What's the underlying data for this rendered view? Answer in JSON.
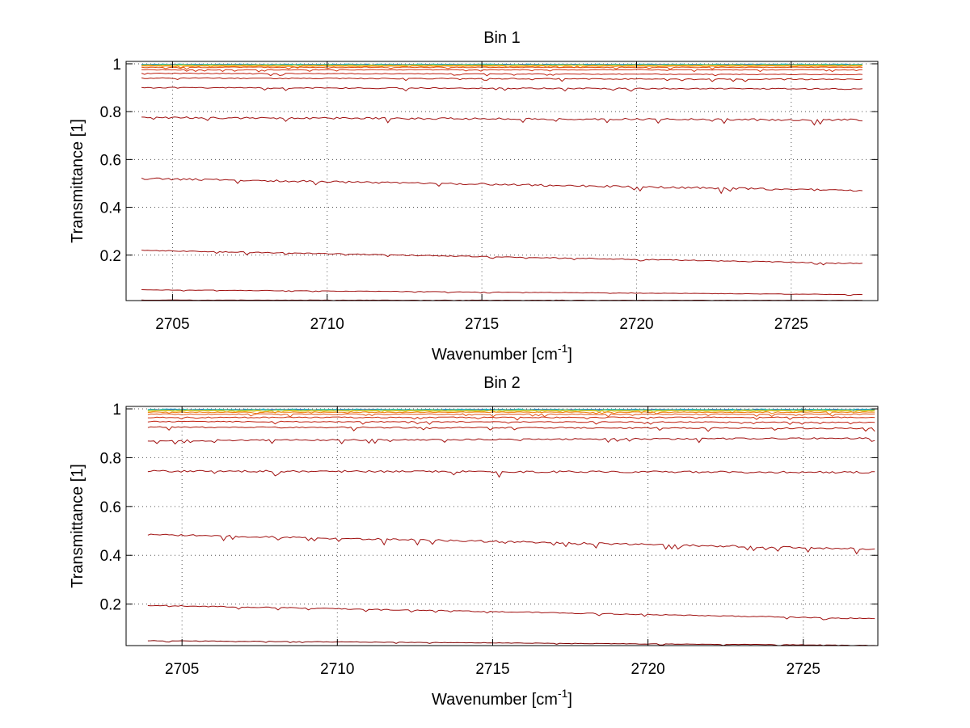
{
  "chart_data": [
    {
      "type": "line",
      "title": "Bin 1",
      "xlabel": "Wavenumber [cm",
      "xlabel_sup": "-1",
      "xlabel_end": "]",
      "ylabel": "Transmittance [1]",
      "xlim": [
        2703.5,
        2727.8
      ],
      "ylim": [
        0.01,
        1.01
      ],
      "xticks": [
        2705,
        2710,
        2715,
        2720,
        2725
      ],
      "xtick_labels": [
        "2705",
        "2710",
        "2715",
        "2720",
        "2725"
      ],
      "yticks": [
        0.2,
        0.4,
        0.6,
        0.8,
        1
      ],
      "ytick_labels": [
        "0.2",
        "0.4",
        "0.6",
        "0.8",
        "1"
      ],
      "grid": true,
      "legend": "none",
      "x_range_data": [
        2704.0,
        2727.3
      ],
      "series": [
        {
          "color": "#00b4d8",
          "start": 0.998,
          "end": 0.998,
          "noise": 0.002
        },
        {
          "color": "#1f5fd0",
          "start": 0.997,
          "end": 0.997,
          "noise": 0.002
        },
        {
          "color": "#40c0a0",
          "start": 0.996,
          "end": 0.996,
          "noise": 0.002
        },
        {
          "color": "#a0d040",
          "start": 0.995,
          "end": 0.995,
          "noise": 0.002
        },
        {
          "color": "#f0c020",
          "start": 0.993,
          "end": 0.993,
          "noise": 0.002
        },
        {
          "color": "#f08010",
          "start": 0.99,
          "end": 0.99,
          "noise": 0.003
        },
        {
          "color": "#e05010",
          "start": 0.985,
          "end": 0.985,
          "noise": 0.003
        },
        {
          "color": "#d03010",
          "start": 0.975,
          "end": 0.975,
          "noise": 0.003
        },
        {
          "color": "#c02010",
          "start": 0.96,
          "end": 0.955,
          "noise": 0.003
        },
        {
          "color": "#b01808",
          "start": 0.94,
          "end": 0.935,
          "noise": 0.004
        },
        {
          "color": "#a01010",
          "start": 0.9,
          "end": 0.895,
          "noise": 0.005
        },
        {
          "color": "#a01010",
          "start": 0.775,
          "end": 0.765,
          "noise": 0.008
        },
        {
          "color": "#a01010",
          "start": 0.52,
          "end": 0.47,
          "noise": 0.008
        },
        {
          "color": "#a01010",
          "start": 0.22,
          "end": 0.165,
          "noise": 0.004
        },
        {
          "color": "#a01010",
          "start": 0.055,
          "end": 0.035,
          "noise": 0.002
        },
        {
          "color": "#800000",
          "start": 0.012,
          "end": 0.011,
          "noise": 0.001
        }
      ]
    },
    {
      "type": "line",
      "title": "Bin 2",
      "xlabel": "Wavenumber [cm",
      "xlabel_sup": "-1",
      "xlabel_end": "]",
      "ylabel": "Transmittance [1]",
      "xlim": [
        2703.2,
        2727.4
      ],
      "ylim": [
        0.03,
        1.01
      ],
      "xticks": [
        2705,
        2710,
        2715,
        2720,
        2725
      ],
      "xtick_labels": [
        "2705",
        "2710",
        "2715",
        "2720",
        "2725"
      ],
      "yticks": [
        0.2,
        0.4,
        0.6,
        0.8,
        1
      ],
      "ytick_labels": [
        "0.2",
        "0.4",
        "0.6",
        "0.8",
        "1"
      ],
      "grid": true,
      "legend": "none",
      "x_range_data": [
        2703.9,
        2727.3
      ],
      "series": [
        {
          "color": "#00b4d8",
          "start": 0.998,
          "end": 0.998,
          "noise": 0.002
        },
        {
          "color": "#1f5fd0",
          "start": 0.997,
          "end": 0.997,
          "noise": 0.002
        },
        {
          "color": "#40c0a0",
          "start": 0.996,
          "end": 0.996,
          "noise": 0.002
        },
        {
          "color": "#a0d040",
          "start": 0.994,
          "end": 0.994,
          "noise": 0.002
        },
        {
          "color": "#f0c020",
          "start": 0.991,
          "end": 0.991,
          "noise": 0.003
        },
        {
          "color": "#f08010",
          "start": 0.986,
          "end": 0.986,
          "noise": 0.003
        },
        {
          "color": "#e05010",
          "start": 0.978,
          "end": 0.978,
          "noise": 0.004
        },
        {
          "color": "#d03010",
          "start": 0.965,
          "end": 0.965,
          "noise": 0.004
        },
        {
          "color": "#c02010",
          "start": 0.948,
          "end": 0.945,
          "noise": 0.004
        },
        {
          "color": "#b01808",
          "start": 0.925,
          "end": 0.92,
          "noise": 0.005
        },
        {
          "color": "#a01010",
          "start": 0.87,
          "end": 0.88,
          "noise": 0.006
        },
        {
          "color": "#a01010",
          "start": 0.745,
          "end": 0.74,
          "noise": 0.008
        },
        {
          "color": "#a01010",
          "start": 0.485,
          "end": 0.425,
          "noise": 0.008
        },
        {
          "color": "#a01010",
          "start": 0.195,
          "end": 0.14,
          "noise": 0.004
        },
        {
          "color": "#800000",
          "start": 0.05,
          "end": 0.031,
          "noise": 0.002
        }
      ]
    }
  ]
}
